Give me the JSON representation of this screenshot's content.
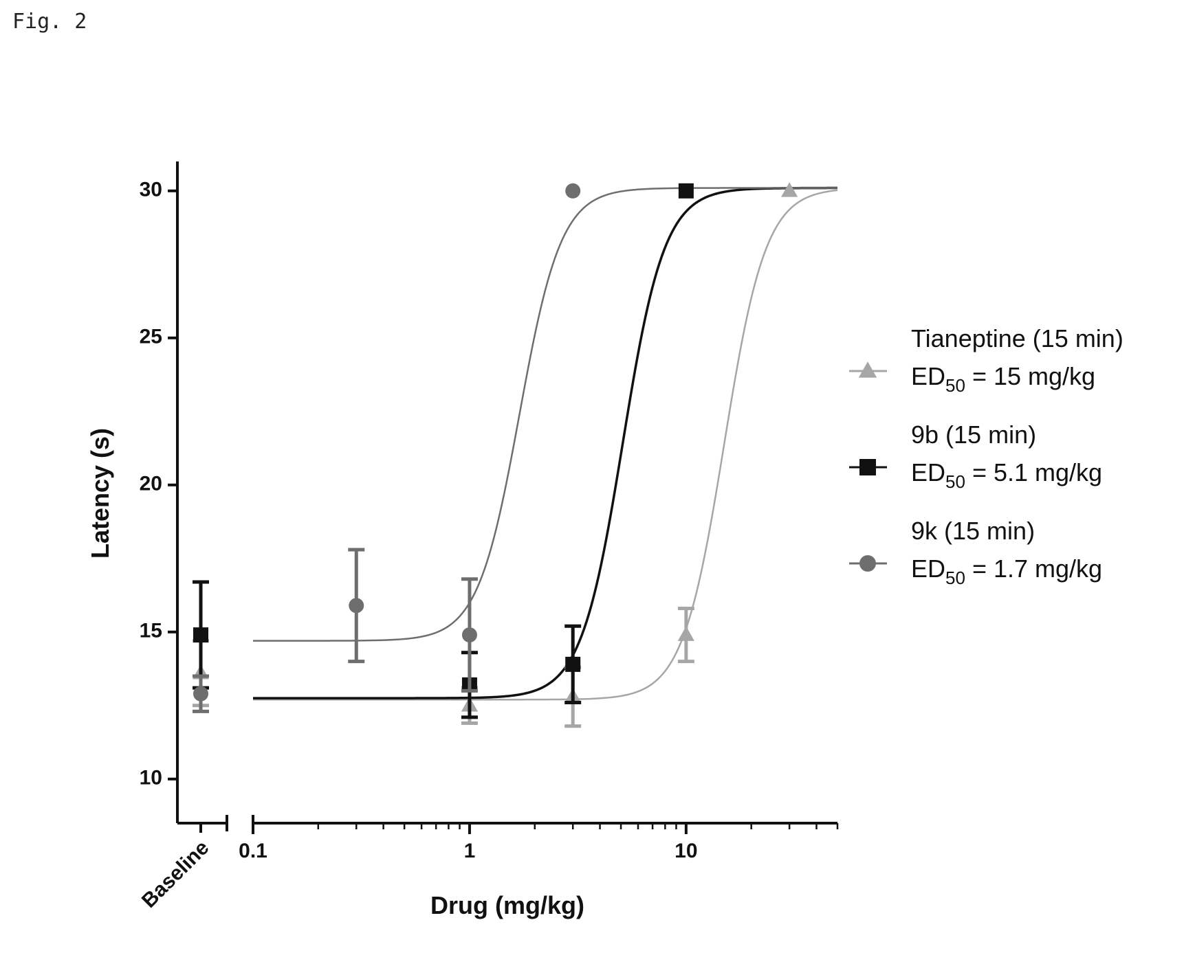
{
  "figure_label": "Fig. 2",
  "chart_data": {
    "type": "scatter",
    "xlabel": "Drug (mg/kg)",
    "ylabel": "Latency (s)",
    "x_scale": "log",
    "xlim": [
      0.1,
      50
    ],
    "ylim": [
      8.5,
      31
    ],
    "x_ticks": [
      0.1,
      1,
      10
    ],
    "x_tick_labels": [
      "0.1",
      "1",
      "10"
    ],
    "baseline_label": "Baseline",
    "y_ticks": [
      10,
      15,
      20,
      25,
      30
    ],
    "y_tick_labels": [
      "10",
      "15",
      "20",
      "25",
      "30"
    ],
    "legend_placement": "right",
    "series": [
      {
        "name": "Tianeptine (15 min)",
        "ed50_prefix": "ED",
        "ed50_sub": "50",
        "ed50_text": " = 15 mg/kg",
        "marker": "triangle",
        "color": "#a6a6a6",
        "baseline": {
          "y": 13.6,
          "err": 1.1
        },
        "points": [
          {
            "x": 1,
            "y": 12.5,
            "err": 0.6
          },
          {
            "x": 3,
            "y": 12.8,
            "err": 1.0
          },
          {
            "x": 10,
            "y": 14.9,
            "err": 0.9
          },
          {
            "x": 30,
            "y": 30,
            "err": 0
          }
        ],
        "fit": {
          "bottom": 12.7,
          "top": 30.1,
          "ed50": 15,
          "hill": 4.5
        }
      },
      {
        "name": "9b (15 min)",
        "ed50_prefix": "ED",
        "ed50_sub": "50",
        "ed50_text": " = 5.1 mg/kg",
        "marker": "square",
        "color": "#111111",
        "baseline": {
          "y": 14.9,
          "err": 1.8
        },
        "points": [
          {
            "x": 1,
            "y": 13.2,
            "err": 1.1
          },
          {
            "x": 3,
            "y": 13.9,
            "err": 1.3
          },
          {
            "x": 10,
            "y": 30,
            "err": 0
          }
        ],
        "fit": {
          "bottom": 12.75,
          "top": 30.1,
          "ed50": 5.1,
          "hill": 4.5
        }
      },
      {
        "name": "9k (15 min)",
        "ed50_prefix": "ED",
        "ed50_sub": "50",
        "ed50_text": " = 1.7 mg/kg",
        "marker": "circle",
        "color": "#6e6e6e",
        "baseline": {
          "y": 12.9,
          "err": 0.6
        },
        "points": [
          {
            "x": 0.3,
            "y": 15.9,
            "err": 1.9
          },
          {
            "x": 1,
            "y": 14.9,
            "err": 1.9
          },
          {
            "x": 3,
            "y": 30,
            "err": 0
          }
        ],
        "fit": {
          "bottom": 14.7,
          "top": 30.1,
          "ed50": 1.7,
          "hill": 4.5
        }
      }
    ]
  }
}
